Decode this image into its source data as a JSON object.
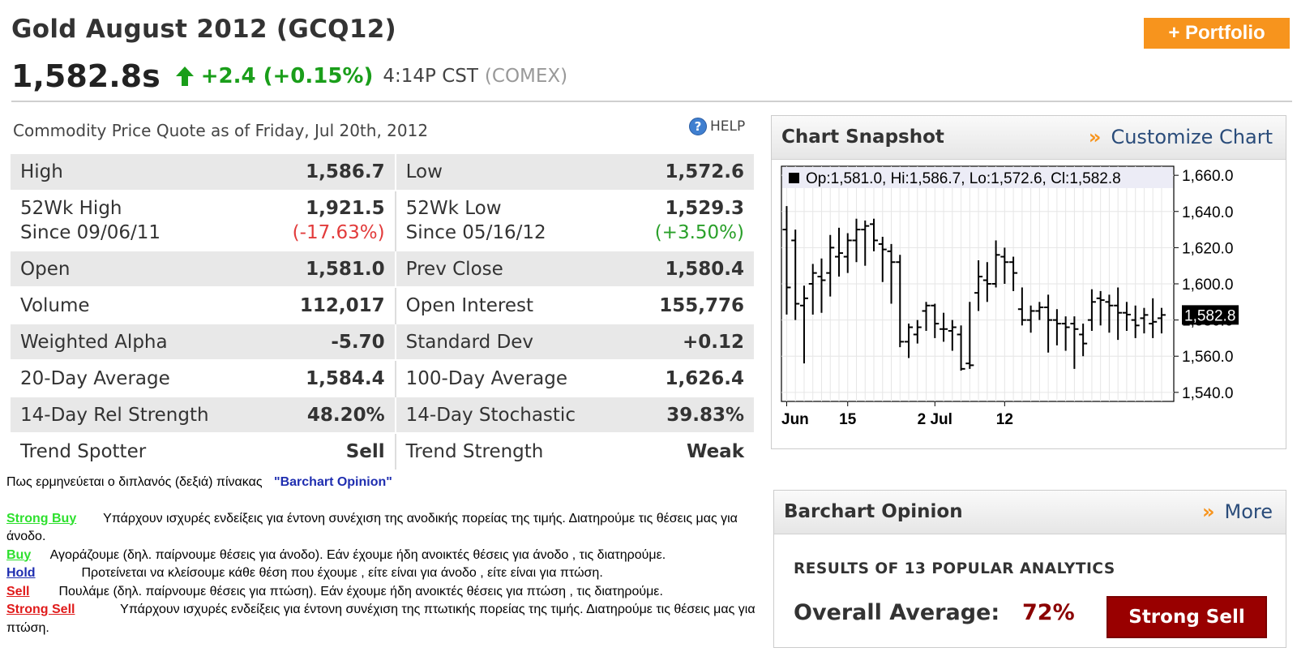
{
  "header": {
    "title": "Gold August 2012 (GCQ12)",
    "portfolio_label": "+ Portfolio",
    "last_price": "1,582.8s",
    "change": "+2.4 (+0.15%)",
    "time": "4:14P CST",
    "exchange": "(COMEX)"
  },
  "quote": {
    "caption": "Commodity Price Quote as of Friday, Jul 20th, 2012",
    "help_label": "HELP",
    "rows": [
      {
        "l_label": "High",
        "l_value": "1,586.7",
        "r_label": "Low",
        "r_value": "1,572.6"
      },
      {
        "l_label": "52Wk High",
        "l_sub": "Since 09/06/11",
        "l_value": "1,921.5",
        "l_subvalue": "(-17.63%)",
        "r_label": "52Wk Low",
        "r_sub": "Since 05/16/12",
        "r_value": "1,529.3",
        "r_subvalue": "(+3.50%)"
      },
      {
        "l_label": "Open",
        "l_value": "1,581.0",
        "r_label": "Prev Close",
        "r_value": "1,580.4"
      },
      {
        "l_label": "Volume",
        "l_value": "112,017",
        "r_label": "Open Interest",
        "r_value": "155,776"
      },
      {
        "l_label": "Weighted Alpha",
        "l_value": "-5.70",
        "r_label": "Standard Dev",
        "r_value": "+0.12"
      },
      {
        "l_label": "20-Day Average",
        "l_value": "1,584.4",
        "r_label": "100-Day Average",
        "r_value": "1,626.4"
      },
      {
        "l_label": "14-Day Rel Strength",
        "l_value": "48.20%",
        "r_label": "14-Day Stochastic",
        "r_value": "39.83%"
      },
      {
        "l_label": "Trend Spotter",
        "l_value": "Sell",
        "r_label": "Trend Strength",
        "r_value": "Weak"
      }
    ]
  },
  "legend": {
    "intro": "Πως ερμηνεύεται ο διπλανός (δεξιά) πίνακας",
    "intro_bold": "\"Barchart Opinion\"",
    "items": [
      {
        "tag": "Strong Buy",
        "text": "Υπάρχουν ισχυρές ενδείξεις για έντονη συνέχιση της ανοδικής πορείας της τιμής. Διατηρούμε τις θέσεις μας για άνοδο."
      },
      {
        "tag": "Buy ",
        "text": "Αγοράζουμε (δηλ. παίρνουμε θέσεις για άνοδο). Εάν έχουμε ήδη ανοικτές θέσεις για άνοδο , τις διατηρούμε."
      },
      {
        "tag": "Hold ",
        "text": "Προτείνεται να κλείσουμε κάθε θέση που έχουμε , είτε είναι για άνοδο , είτε είναι για πτώση."
      },
      {
        "tag": "Sell ",
        "text": "Πουλάμε (δηλ. παίρνουμε θέσεις για πτώση). Εάν έχουμε ήδη ανοικτές θέσεις για πτώση , τις διατηρούμε."
      },
      {
        "tag": "Strong Sell",
        "text": "Υπάρχουν ισχυρές ενδείξεις για έντονη συνέχιση της πτωτικής πορείας της τιμής. Διατηρούμε τις θέσεις μας για πτώση."
      }
    ]
  },
  "chart_panel": {
    "title": "Chart Snapshot",
    "link": "Customize Chart",
    "ohlc_label": "Op:1,581.0, Hi:1,586.7, Lo:1,572.6, Cl:1,582.8",
    "last_label": "1,582.8"
  },
  "opinion": {
    "title": "Barchart Opinion",
    "link": "More",
    "heading": "RESULTS OF 13 POPULAR ANALYTICS",
    "avg_label": "Overall Average:",
    "avg_value": "72%",
    "signal": "Strong Sell"
  },
  "colors": {
    "accent_orange": "#f7941d",
    "up_green": "#1a9e1a",
    "down_red": "#e23b3b",
    "strong_sell": "#990000"
  },
  "chart_data": {
    "type": "ohlc",
    "ylim": [
      1535,
      1665
    ],
    "yticks": [
      "1,660.0",
      "1,640.0",
      "1,620.0",
      "1,600.0",
      "1,580.0",
      "1,560.0",
      "1,540.0"
    ],
    "ytick_values": [
      1660,
      1640,
      1620,
      1600,
      1580,
      1560,
      1540
    ],
    "xtick_labels": [
      "Jun",
      "15",
      "2 Jul",
      "12"
    ],
    "xtick_index": [
      0,
      7,
      17,
      25
    ],
    "bars": [
      {
        "o": 1630,
        "h": 1643,
        "l": 1583,
        "c": 1598
      },
      {
        "o": 1624,
        "h": 1630,
        "l": 1580,
        "c": 1589
      },
      {
        "o": 1588,
        "h": 1599,
        "l": 1556,
        "c": 1592
      },
      {
        "o": 1600,
        "h": 1611,
        "l": 1583,
        "c": 1606
      },
      {
        "o": 1604,
        "h": 1614,
        "l": 1584,
        "c": 1602
      },
      {
        "o": 1606,
        "h": 1627,
        "l": 1593,
        "c": 1620
      },
      {
        "o": 1615,
        "h": 1631,
        "l": 1604,
        "c": 1617
      },
      {
        "o": 1615,
        "h": 1628,
        "l": 1606,
        "c": 1624
      },
      {
        "o": 1624,
        "h": 1636,
        "l": 1612,
        "c": 1630
      },
      {
        "o": 1630,
        "h": 1635,
        "l": 1610,
        "c": 1632
      },
      {
        "o": 1633,
        "h": 1636,
        "l": 1618,
        "c": 1624
      },
      {
        "o": 1622,
        "h": 1626,
        "l": 1601,
        "c": 1619
      },
      {
        "o": 1618,
        "h": 1622,
        "l": 1589,
        "c": 1612
      },
      {
        "o": 1612,
        "h": 1616,
        "l": 1565,
        "c": 1568
      },
      {
        "o": 1568,
        "h": 1578,
        "l": 1559,
        "c": 1576
      },
      {
        "o": 1572,
        "h": 1580,
        "l": 1567,
        "c": 1576
      },
      {
        "o": 1585,
        "h": 1590,
        "l": 1574,
        "c": 1588
      },
      {
        "o": 1588,
        "h": 1589,
        "l": 1570,
        "c": 1578
      },
      {
        "o": 1575,
        "h": 1584,
        "l": 1568,
        "c": 1575
      },
      {
        "o": 1574,
        "h": 1580,
        "l": 1563,
        "c": 1576
      },
      {
        "o": 1572,
        "h": 1577,
        "l": 1552,
        "c": 1553
      },
      {
        "o": 1556,
        "h": 1590,
        "l": 1553,
        "c": 1555
      },
      {
        "o": 1595,
        "h": 1613,
        "l": 1585,
        "c": 1604
      },
      {
        "o": 1602,
        "h": 1612,
        "l": 1590,
        "c": 1600
      },
      {
        "o": 1600,
        "h": 1624,
        "l": 1598,
        "c": 1616
      },
      {
        "o": 1615,
        "h": 1620,
        "l": 1600,
        "c": 1612
      },
      {
        "o": 1612,
        "h": 1615,
        "l": 1596,
        "c": 1606
      },
      {
        "o": 1586,
        "h": 1598,
        "l": 1577,
        "c": 1580
      },
      {
        "o": 1580,
        "h": 1588,
        "l": 1573,
        "c": 1585
      },
      {
        "o": 1585,
        "h": 1590,
        "l": 1580,
        "c": 1587
      },
      {
        "o": 1587,
        "h": 1594,
        "l": 1562,
        "c": 1580
      },
      {
        "o": 1580,
        "h": 1586,
        "l": 1566,
        "c": 1578
      },
      {
        "o": 1578,
        "h": 1582,
        "l": 1563,
        "c": 1576
      },
      {
        "o": 1578,
        "h": 1582,
        "l": 1553,
        "c": 1575
      },
      {
        "o": 1572,
        "h": 1578,
        "l": 1560,
        "c": 1567
      },
      {
        "o": 1580,
        "h": 1597,
        "l": 1574,
        "c": 1590
      },
      {
        "o": 1592,
        "h": 1596,
        "l": 1577,
        "c": 1591
      },
      {
        "o": 1590,
        "h": 1594,
        "l": 1573,
        "c": 1588
      },
      {
        "o": 1588,
        "h": 1598,
        "l": 1569,
        "c": 1584
      },
      {
        "o": 1584,
        "h": 1590,
        "l": 1574,
        "c": 1583
      },
      {
        "o": 1580,
        "h": 1588,
        "l": 1570,
        "c": 1577
      },
      {
        "o": 1581,
        "h": 1586.7,
        "l": 1572.6,
        "c": 1582.8
      },
      {
        "o": 1578,
        "h": 1592,
        "l": 1570,
        "c": 1579
      },
      {
        "o": 1581,
        "h": 1586.7,
        "l": 1572.6,
        "c": 1582.8
      }
    ]
  }
}
